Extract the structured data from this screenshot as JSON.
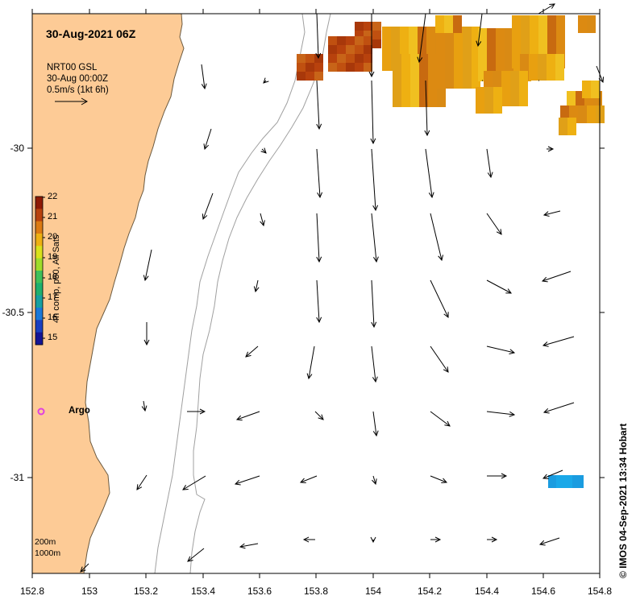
{
  "title": "30-Aug-2021 06Z",
  "legend": {
    "product": "NRT00 GSL",
    "time": "30-Aug 00:00Z",
    "scale": "0.5m/s (1kt 6h)"
  },
  "colorbar": {
    "caption": "4h comp, p50, All Sats",
    "labels": [
      "22",
      "21",
      "20",
      "19",
      "18",
      "17",
      "16",
      "15"
    ],
    "colors": [
      "#8e1a05",
      "#b8420d",
      "#dc7a12",
      "#eeb012",
      "#d9e11a",
      "#9fdc2a",
      "#3fc05a",
      "#1fb06e",
      "#17a0a0",
      "#1a78d8",
      "#1a3fc0",
      "#141494"
    ]
  },
  "x_ticks": [
    "152.8",
    "153",
    "153.2",
    "153.4",
    "153.6",
    "153.8",
    "154",
    "154.2",
    "154.4",
    "154.6",
    "154.8"
  ],
  "y_ticks": [
    "-30",
    "-30.5",
    "-31"
  ],
  "argo": {
    "label": "Argo",
    "color": "#e040e0"
  },
  "depth_contours": {
    "line1": "200m",
    "line2": "1000m"
  },
  "credit": "© IMOS 04-Sep-2021 13:34 Hobart",
  "colors": {
    "land": "#fdcb96",
    "coast": "#6b5a40",
    "contour": "#a0a0a0",
    "frame": "#000000"
  },
  "map_data": {
    "lon_range": [
      152.8,
      154.8
    ],
    "lat_range": [
      -31.3,
      -29.59
    ],
    "sst_warm_region": "north-east corner 21–22 °C",
    "sst_cool_patch": "around 154.7E, -31.0 ~16 °C"
  }
}
